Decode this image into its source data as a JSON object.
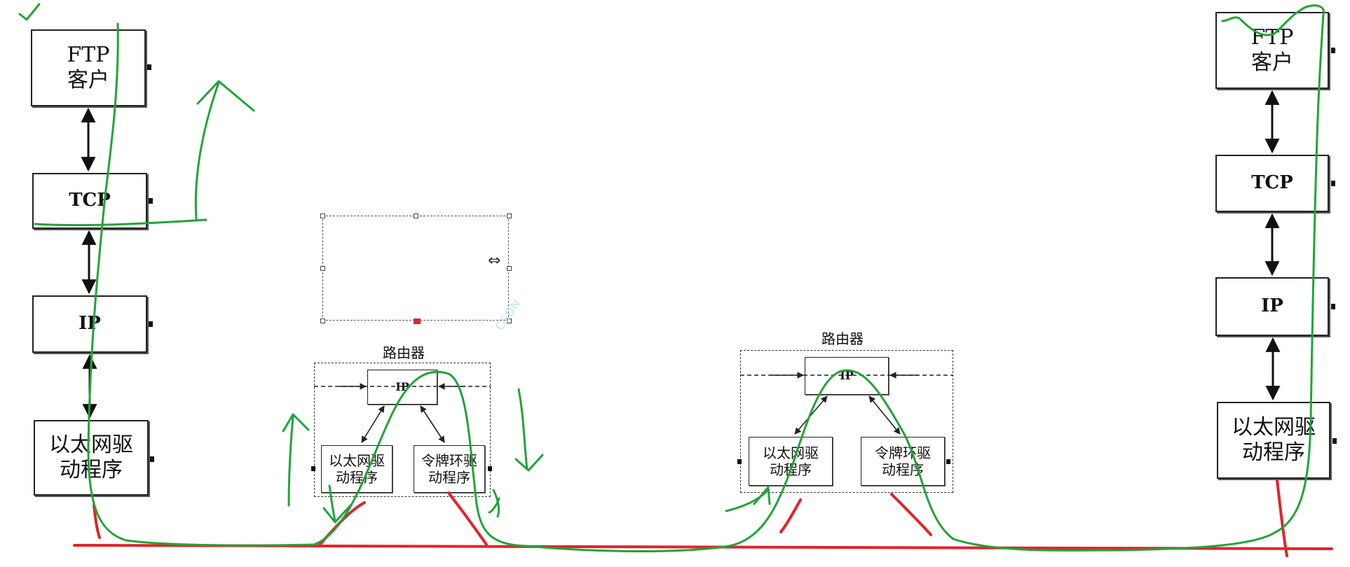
{
  "left_host": {
    "app": "FTP\n客户",
    "transport": "TCP",
    "network": "IP",
    "driver": "以太网驱\n动程序"
  },
  "right_host": {
    "app": "FTP\n客户",
    "transport": "TCP",
    "network": "IP",
    "driver": "以太网驱\n动程序"
  },
  "router1": {
    "label": "路由器",
    "ip": "IP",
    "driver_left": "以太网驱\n动程序",
    "driver_right": "令牌环驱\n动程序"
  },
  "router2": {
    "label": "路由器",
    "ip": "IP",
    "driver_left": "以太网驱\n动程序",
    "driver_right": "令牌环驱\n动程序"
  },
  "colors": {
    "annotation_green": "#22a33a",
    "network_red": "#e0242a",
    "box_border": "#222222"
  },
  "icons": {
    "resize_cursor": "horizontal-resize-icon",
    "checkmark": "checkmark-icon"
  }
}
